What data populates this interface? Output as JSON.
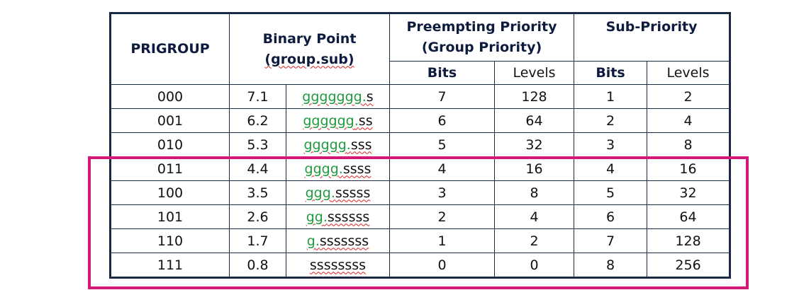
{
  "table": {
    "headers": {
      "prigroup": "PRIGROUP",
      "binary_point_line1": "Binary Point",
      "binary_point_line2": "(group.sub)",
      "preempt_line1": "Preempting Priority",
      "preempt_line2": "(Group Priority)",
      "sub_priority": "Sub-Priority",
      "bits": "Bits",
      "levels": "Levels"
    },
    "rows": [
      {
        "prigroup": "000",
        "point": "7.1",
        "pattern_group": "ggggggg",
        "pattern_dot": ".",
        "pattern_sub": "s",
        "pre_bits": "7",
        "pre_levels": "128",
        "sub_bits": "1",
        "sub_levels": "2"
      },
      {
        "prigroup": "001",
        "point": "6.2",
        "pattern_group": "gggggg",
        "pattern_dot": ".",
        "pattern_sub": "ss",
        "pre_bits": "6",
        "pre_levels": "64",
        "sub_bits": "2",
        "sub_levels": "4"
      },
      {
        "prigroup": "010",
        "point": "5.3",
        "pattern_group": "ggggg",
        "pattern_dot": ".",
        "pattern_sub": "sss",
        "pre_bits": "5",
        "pre_levels": "32",
        "sub_bits": "3",
        "sub_levels": "8"
      },
      {
        "prigroup": "011",
        "point": "4.4",
        "pattern_group": "gggg",
        "pattern_dot": ".",
        "pattern_sub": "ssss",
        "pre_bits": "4",
        "pre_levels": "16",
        "sub_bits": "4",
        "sub_levels": "16"
      },
      {
        "prigroup": "100",
        "point": "3.5",
        "pattern_group": "ggg",
        "pattern_dot": ".",
        "pattern_sub": "sssss",
        "pre_bits": "3",
        "pre_levels": "8",
        "sub_bits": "5",
        "sub_levels": "32"
      },
      {
        "prigroup": "101",
        "point": "2.6",
        "pattern_group": "gg",
        "pattern_dot": ".",
        "pattern_sub": "ssssss",
        "pre_bits": "2",
        "pre_levels": "4",
        "sub_bits": "6",
        "sub_levels": "64"
      },
      {
        "prigroup": "110",
        "point": "1.7",
        "pattern_group": "g",
        "pattern_dot": ".",
        "pattern_sub": "sssssss",
        "pre_bits": "1",
        "pre_levels": "2",
        "sub_bits": "7",
        "sub_levels": "128"
      },
      {
        "prigroup": "111",
        "point": "0.8",
        "pattern_group": "",
        "pattern_dot": "",
        "pattern_sub": "ssssssss",
        "pre_bits": "0",
        "pre_levels": "0",
        "sub_bits": "8",
        "sub_levels": "256"
      }
    ]
  },
  "colors": {
    "border": "#1a2a44",
    "header_text": "#0d1b3e",
    "group_bits": "#1e9a3c",
    "spellcheck_underline": "#d62020",
    "highlight_box": "#d4187a"
  }
}
